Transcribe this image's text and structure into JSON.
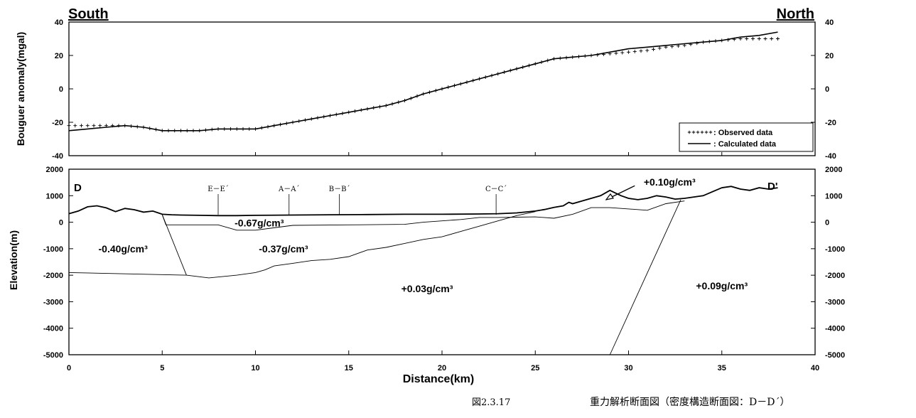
{
  "header": {
    "left": "South",
    "right": "North"
  },
  "caption": {
    "figure_no": "図2.3.17",
    "title": "重力解析断面図（密度構造断面図：D－D´）"
  },
  "chart_data": [
    {
      "type": "line",
      "ylabel": "Bouguer anomaly(mgal)",
      "xlim": [
        0,
        40
      ],
      "ylim": [
        -40,
        40
      ],
      "yticks": [
        40,
        20,
        0,
        -20,
        -40
      ],
      "grid": false,
      "legend_position": "bottom-right",
      "series": [
        {
          "name": ": Observed data",
          "style": "crosses",
          "x": [
            0,
            1,
            2,
            3,
            4,
            5,
            6,
            7,
            8,
            9,
            10,
            11,
            12,
            13,
            14,
            15,
            16,
            17,
            18,
            19,
            20,
            21,
            22,
            23,
            24,
            25,
            26,
            27,
            28,
            29,
            30,
            31,
            32,
            33,
            34,
            35,
            36,
            37,
            38
          ],
          "y": [
            -22,
            -22,
            -22,
            -22,
            -23,
            -25,
            -25,
            -25,
            -24,
            -24,
            -24,
            -22,
            -20,
            -18,
            -16,
            -14,
            -12,
            -10,
            -7,
            -3,
            0,
            3,
            6,
            9,
            12,
            15,
            18,
            19,
            20,
            21,
            22,
            23,
            25,
            26,
            28,
            29,
            30,
            30,
            30
          ]
        },
        {
          "name": ": Calculated data",
          "style": "solid",
          "x": [
            0,
            1,
            2,
            3,
            4,
            5,
            6,
            7,
            8,
            9,
            10,
            11,
            12,
            13,
            14,
            15,
            16,
            17,
            18,
            19,
            20,
            21,
            22,
            23,
            24,
            25,
            26,
            27,
            28,
            29,
            30,
            31,
            32,
            33,
            34,
            35,
            36,
            37,
            38
          ],
          "y": [
            -25,
            -24,
            -23,
            -22,
            -23,
            -25,
            -25,
            -25,
            -24,
            -24,
            -24,
            -22,
            -20,
            -18,
            -16,
            -14,
            -12,
            -10,
            -7,
            -3,
            0,
            3,
            6,
            9,
            12,
            15,
            18,
            19,
            20,
            22,
            24,
            25,
            26,
            27,
            28,
            29,
            31,
            32,
            34
          ]
        }
      ]
    },
    {
      "type": "line",
      "xlabel": "Distance(km)",
      "ylabel": "Elevation(m)",
      "xlim": [
        0,
        40
      ],
      "ylim": [
        -5000,
        2000
      ],
      "xticks": [
        0,
        5,
        10,
        15,
        20,
        25,
        30,
        35,
        40
      ],
      "yticks": [
        2000,
        1000,
        0,
        -1000,
        -2000,
        -3000,
        -4000,
        -5000
      ],
      "grid": false,
      "end_labels": {
        "left": "D",
        "right": "D'"
      },
      "section_marks": [
        {
          "label": "E－E´",
          "x": 8.0
        },
        {
          "label": "A－A´",
          "x": 11.8
        },
        {
          "label": "B－B´",
          "x": 14.5
        },
        {
          "label": "C－C´",
          "x": 22.9
        }
      ],
      "density_labels": [
        {
          "text": "-0.40g/cm³",
          "x": 2.9,
          "y": -1000
        },
        {
          "text": "-0.67g/cm³",
          "x": 10.2,
          "y": -20
        },
        {
          "text": "-0.37g/cm³",
          "x": 11.5,
          "y": -1000
        },
        {
          "text": "+0.03g/cm³",
          "x": 19.2,
          "y": -2500
        },
        {
          "text": "+0.09g/cm³",
          "x": 35.0,
          "y": -2400
        },
        {
          "text": "+0.10g/cm³",
          "x": 32.2,
          "y": 1520
        }
      ],
      "topography": {
        "x": [
          0,
          0.5,
          1,
          1.5,
          2,
          2.5,
          3,
          3.5,
          4,
          4.5,
          5,
          5.5,
          6,
          7,
          8,
          9,
          10,
          12,
          14,
          16,
          18,
          20,
          22,
          23,
          24,
          25,
          25.5,
          26,
          26.5,
          26.8,
          27,
          27.5,
          28,
          28.5,
          29,
          29.3,
          29.6,
          30,
          30.5,
          31,
          31.5,
          32,
          32.5,
          33,
          33.5,
          34,
          34.5,
          35,
          35.5,
          36,
          36.5,
          37,
          37.5,
          38
        ],
        "y": [
          320,
          420,
          580,
          620,
          540,
          400,
          520,
          470,
          380,
          420,
          300,
          280,
          270,
          260,
          250,
          250,
          260,
          270,
          280,
          290,
          300,
          300,
          310,
          320,
          350,
          420,
          480,
          560,
          620,
          750,
          700,
          800,
          900,
          1000,
          1200,
          1100,
          1000,
          900,
          850,
          900,
          1000,
          950,
          870,
          900,
          950,
          1000,
          1150,
          1300,
          1350,
          1250,
          1200,
          1300,
          1250,
          1300
        ]
      },
      "boundaries": [
        {
          "x": [
            5.0,
            5.2,
            8.0,
            9.0,
            10.0,
            12.0,
            15.0,
            18.0,
            19.0,
            21.0,
            22.0,
            23.0,
            24.0,
            25.0,
            26.0,
            27.0,
            28.0,
            29.0,
            30.0,
            31.0,
            32.0,
            33.0
          ],
          "y": [
            280,
            -100,
            -100,
            -300,
            -300,
            -120,
            -100,
            -80,
            0,
            100,
            180,
            180,
            190,
            200,
            150,
            300,
            550,
            550,
            500,
            450,
            700,
            800
          ]
        },
        {
          "x": [
            5.0,
            6.3
          ],
          "y": [
            280,
            -2000
          ]
        },
        {
          "x": [
            0,
            6.3,
            7.5,
            9.0,
            10.0,
            10.5,
            11.0,
            12.0,
            13.0,
            14.0,
            15.0,
            16.0,
            17.0,
            18.0,
            19.0,
            20.0,
            21.0,
            22.0,
            23.0,
            24.0,
            25.0
          ],
          "y": [
            -1900,
            -2000,
            -2100,
            -2000,
            -1900,
            -1800,
            -1650,
            -1550,
            -1450,
            -1400,
            -1300,
            -1050,
            -950,
            -800,
            -650,
            -550,
            -350,
            -150,
            50,
            250,
            400
          ]
        },
        {
          "x": [
            29.0,
            32.8
          ],
          "y": [
            -5000,
            850
          ]
        }
      ],
      "arrow": {
        "from": [
          29.8,
          1000
        ],
        "to": [
          28.8,
          850
        ]
      }
    }
  ]
}
